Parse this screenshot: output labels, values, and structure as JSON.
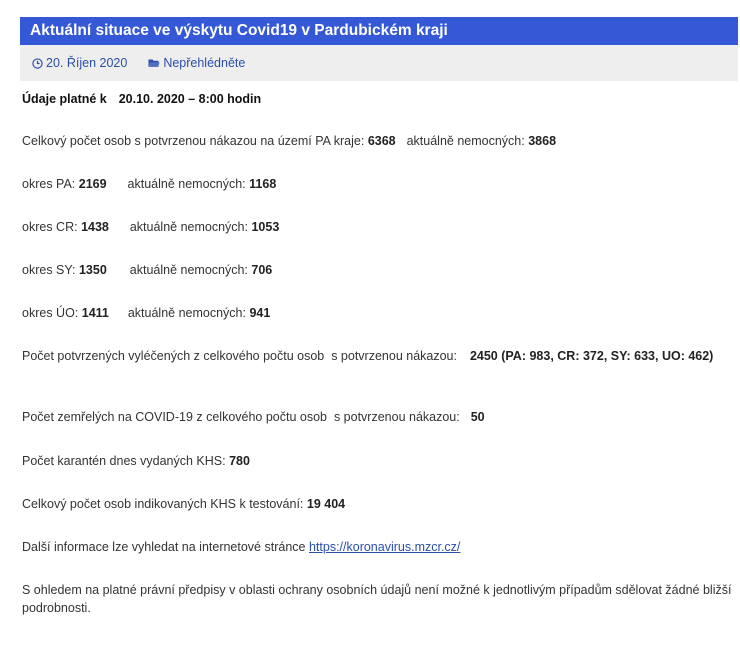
{
  "article": {
    "title": "Aktuální situace ve výskytu Covid19 v Pardubickém kraji",
    "date": "20. Říjen 2020",
    "category": "Nepřehlédněte"
  },
  "content": {
    "valid_label": "Údaje platné k",
    "valid_value": "20.10. 2020 – 8:00 hodin",
    "total_label": "Celkový počet osob s potvrzenou nákazou na území PA kraje:",
    "total_value": "6368",
    "total_ill_label": "aktuálně nemocných:",
    "total_ill_value": "3868",
    "districts": [
      {
        "label": "okres PA:",
        "value": "2169",
        "ill_label": "aktuálně nemocných:",
        "ill_value": "1168"
      },
      {
        "label": "okres CR:",
        "value": "1438",
        "ill_label": "aktuálně nemocných:",
        "ill_value": "1053"
      },
      {
        "label": "okres SY:",
        "value": "1350",
        "ill_label": "aktuálně nemocných:",
        "ill_value": "706"
      },
      {
        "label": "okres ÚO:",
        "value": "1411",
        "ill_label": "aktuálně nemocných:",
        "ill_value": "941"
      }
    ],
    "recovered_label": "Počet potvrzených vyléčených z celkového počtu osob  s potvrzenou nákazou:",
    "recovered_value": "2450 (PA: 983, CR: 372, SY: 633, UO: 462)",
    "deaths_label": "Počet zemřelých na COVID-19 z celkového počtu osob  s potvrzenou nákazou:",
    "deaths_value": "50",
    "quarantine_label": "Počet karantén dnes vydaných KHS:",
    "quarantine_value": "780",
    "tested_label": "Celkový počet osob indikovaných KHS k testování:",
    "tested_value": "19 404",
    "more_info_label": "Další informace lze vyhledat na internetové stránce",
    "more_info_link": "https://koronavirus.mzcr.cz/",
    "privacy_note": "S ohledem na platné právní předpisy v oblasti ochrany osobních údajů není možné k jednotlivým případům sdělovat žádné bližší podrobnosti."
  },
  "icons": {
    "date": "clock-icon",
    "category": "folder-icon"
  },
  "colors": {
    "title_bar": "#3559d6",
    "meta_bar": "#eeeeee",
    "link": "#2a4fa8"
  }
}
